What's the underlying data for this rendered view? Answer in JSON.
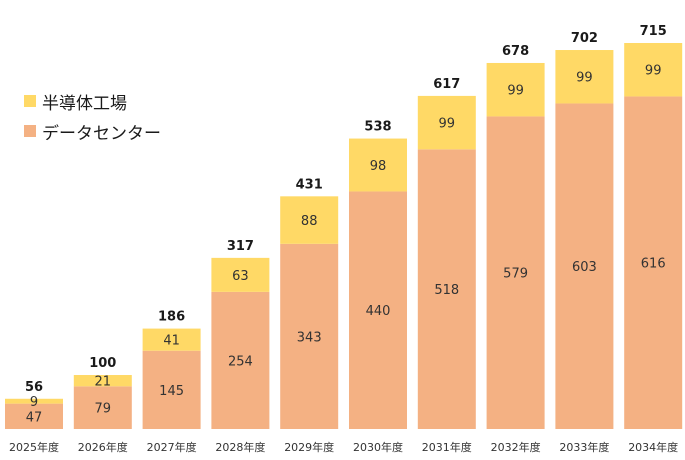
{
  "chart_data": {
    "type": "bar",
    "stacked": true,
    "categories": [
      "2025年度",
      "2026年度",
      "2027年度",
      "2028年度",
      "2029年度",
      "2030年度",
      "2031年度",
      "2032年度",
      "2033年度",
      "2034年度"
    ],
    "series": [
      {
        "name": "データセンター",
        "color": "#f4b183",
        "values": [
          47,
          79,
          145,
          254,
          343,
          440,
          518,
          579,
          603,
          616
        ]
      },
      {
        "name": "半導体工場",
        "color": "#ffd966",
        "values": [
          9,
          21,
          41,
          63,
          88,
          98,
          99,
          99,
          99,
          99
        ]
      }
    ],
    "totals": [
      56,
      100,
      186,
      317,
      431,
      538,
      617,
      678,
      702,
      715
    ],
    "title": "",
    "xlabel": "",
    "ylabel": "",
    "ylim": [
      0,
      715
    ],
    "grid": false,
    "legend_position": "top-left"
  }
}
